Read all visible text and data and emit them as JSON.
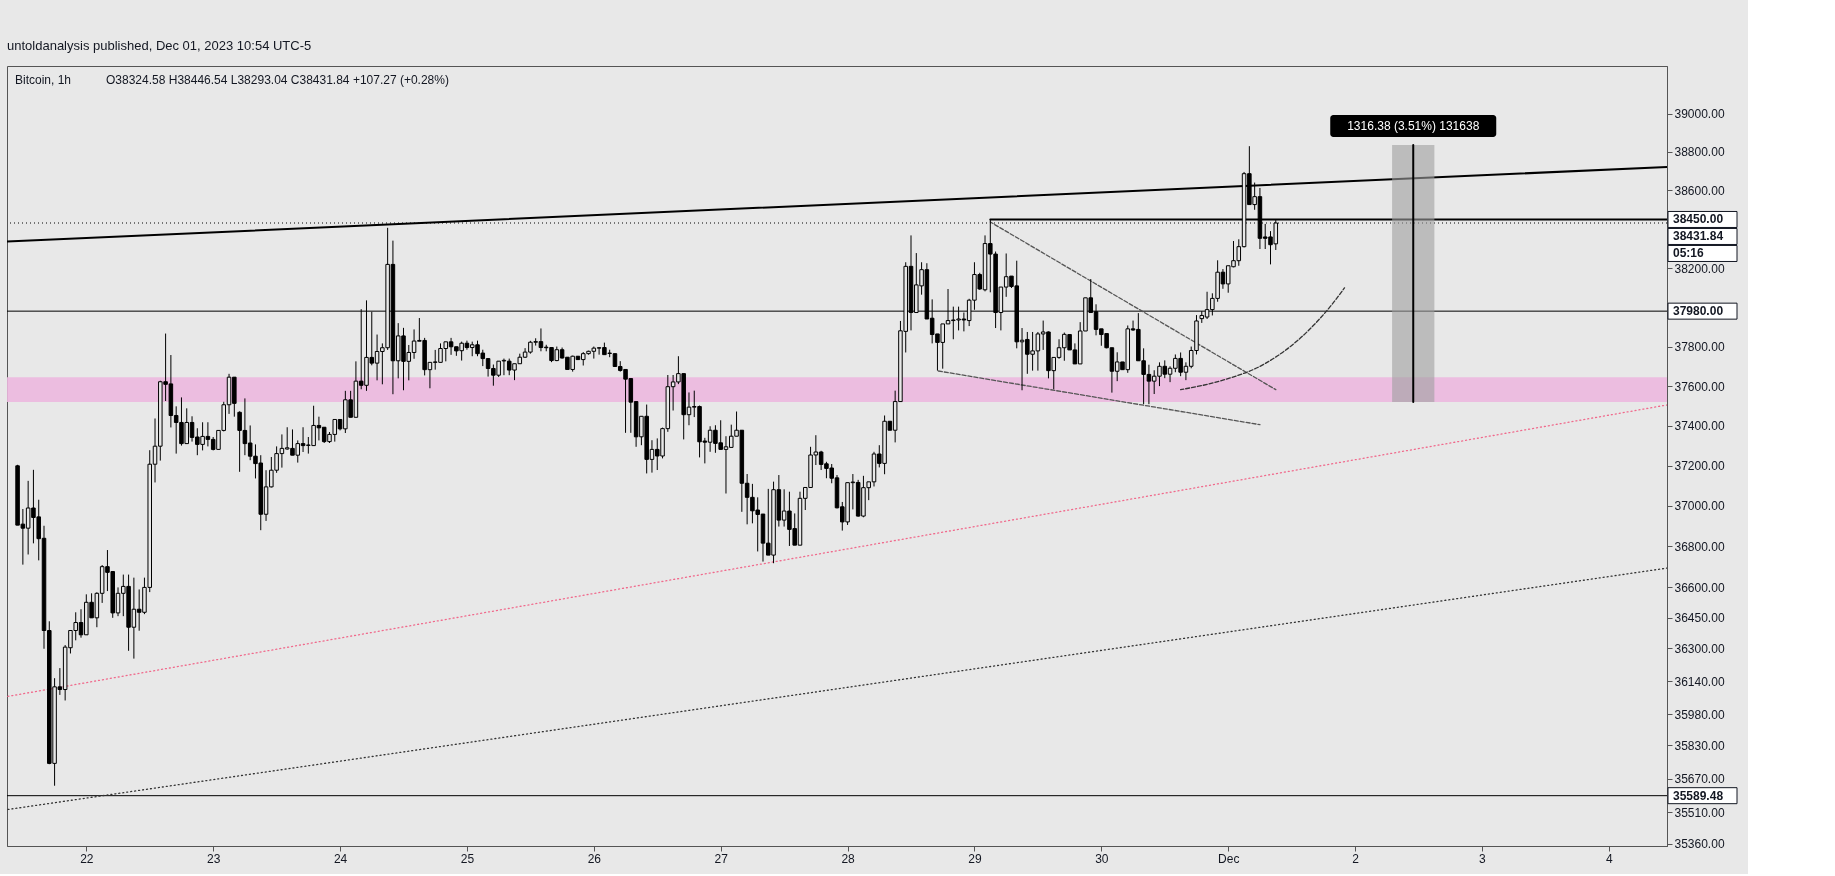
{
  "chart_data": {
    "type": "candlestick",
    "title": "Bitcoin, 1h",
    "subtitle": "O38324.58 H38446.54 L38293.04 C38431.84 +107.27 (+0.28%)",
    "color": "#000000",
    "log": true,
    "grid": false,
    "xlim": [
      "2023-11-21T09:00",
      "2023-12-04T11:00"
    ],
    "xticks": [
      {
        "value": "2023-11-22",
        "label": "22"
      },
      {
        "value": "2023-11-23",
        "label": "23"
      },
      {
        "value": "2023-11-24",
        "label": "24"
      },
      {
        "value": "2023-11-25",
        "label": "25"
      },
      {
        "value": "2023-11-26",
        "label": "26"
      },
      {
        "value": "2023-11-27",
        "label": "27"
      },
      {
        "value": "2023-11-28",
        "label": "28"
      },
      {
        "value": "2023-11-29",
        "label": "29"
      },
      {
        "value": "2023-11-30",
        "label": "30"
      },
      {
        "value": "2023-12-01",
        "label": "Dec"
      },
      {
        "value": "2023-12-02",
        "label": "2"
      },
      {
        "value": "2023-12-03",
        "label": "3"
      },
      {
        "value": "2023-12-04",
        "label": "4"
      }
    ],
    "ylim": [
      35350,
      39250
    ],
    "yticks": [
      {
        "value": 39000,
        "label": "39000.00"
      },
      {
        "value": 38800,
        "label": "38800.00"
      },
      {
        "value": 38600,
        "label": "38600.00"
      },
      {
        "value": 38200,
        "label": "38200.00"
      },
      {
        "value": 37800,
        "label": "37800.00"
      },
      {
        "value": 37600,
        "label": "37600.00"
      },
      {
        "value": 37400,
        "label": "37400.00"
      },
      {
        "value": 37200,
        "label": "37200.00"
      },
      {
        "value": 37000,
        "label": "37000.00"
      },
      {
        "value": 36800,
        "label": "36800.00"
      },
      {
        "value": 36600,
        "label": "36600.00"
      },
      {
        "value": 36450,
        "label": "36450.00"
      },
      {
        "value": 36300,
        "label": "36300.00"
      },
      {
        "value": 36140,
        "label": "36140.00"
      },
      {
        "value": 35980,
        "label": "35980.00"
      },
      {
        "value": 35830,
        "label": "35830.00"
      },
      {
        "value": 35670,
        "label": "35670.00"
      },
      {
        "value": 35510,
        "label": "35510.00"
      },
      {
        "value": 35360,
        "label": "35360.00"
      }
    ],
    "x": [
      "2023-11-21T11:00",
      "2023-11-21T12:00",
      "2023-11-21T13:00",
      "2023-11-21T14:00",
      "2023-11-21T15:00",
      "2023-11-21T16:00",
      "2023-11-21T17:00",
      "2023-11-21T18:00",
      "2023-11-21T19:00",
      "2023-11-21T20:00",
      "2023-11-21T21:00",
      "2023-11-21T22:00",
      "2023-11-21T23:00",
      "2023-11-22T00:00",
      "2023-11-22T01:00",
      "2023-11-22T02:00",
      "2023-11-22T03:00",
      "2023-11-22T04:00",
      "2023-11-22T05:00",
      "2023-11-22T06:00",
      "2023-11-22T07:00",
      "2023-11-22T08:00",
      "2023-11-22T09:00",
      "2023-11-22T10:00",
      "2023-11-22T11:00",
      "2023-11-22T12:00",
      "2023-11-22T13:00",
      "2023-11-22T14:00",
      "2023-11-22T15:00",
      "2023-11-22T16:00",
      "2023-11-22T17:00",
      "2023-11-22T18:00",
      "2023-11-22T19:00",
      "2023-11-22T20:00",
      "2023-11-22T21:00",
      "2023-11-22T22:00",
      "2023-11-22T23:00",
      "2023-11-23T00:00",
      "2023-11-23T01:00",
      "2023-11-23T02:00",
      "2023-11-23T03:00",
      "2023-11-23T04:00",
      "2023-11-23T05:00",
      "2023-11-23T06:00",
      "2023-11-23T07:00",
      "2023-11-23T08:00",
      "2023-11-23T09:00",
      "2023-11-23T10:00",
      "2023-11-23T11:00",
      "2023-11-23T12:00",
      "2023-11-23T13:00",
      "2023-11-23T14:00",
      "2023-11-23T15:00",
      "2023-11-23T16:00",
      "2023-11-23T17:00",
      "2023-11-23T18:00",
      "2023-11-23T19:00",
      "2023-11-23T20:00",
      "2023-11-23T21:00",
      "2023-11-23T22:00",
      "2023-11-23T23:00",
      "2023-11-24T00:00",
      "2023-11-24T01:00",
      "2023-11-24T02:00",
      "2023-11-24T03:00",
      "2023-11-24T04:00",
      "2023-11-24T05:00",
      "2023-11-24T06:00",
      "2023-11-24T07:00",
      "2023-11-24T08:00",
      "2023-11-24T09:00",
      "2023-11-24T10:00",
      "2023-11-24T11:00",
      "2023-11-24T12:00",
      "2023-11-24T13:00",
      "2023-11-24T14:00",
      "2023-11-24T15:00",
      "2023-11-24T16:00",
      "2023-11-24T17:00",
      "2023-11-24T18:00",
      "2023-11-24T19:00",
      "2023-11-24T20:00",
      "2023-11-24T21:00",
      "2023-11-24T22:00",
      "2023-11-24T23:00",
      "2023-11-25T00:00",
      "2023-11-25T01:00",
      "2023-11-25T02:00",
      "2023-11-25T03:00",
      "2023-11-25T04:00",
      "2023-11-25T05:00",
      "2023-11-25T06:00",
      "2023-11-25T07:00",
      "2023-11-25T08:00",
      "2023-11-25T09:00",
      "2023-11-25T10:00",
      "2023-11-25T11:00",
      "2023-11-25T12:00",
      "2023-11-25T13:00",
      "2023-11-25T14:00",
      "2023-11-25T15:00",
      "2023-11-25T16:00",
      "2023-11-25T17:00",
      "2023-11-25T18:00",
      "2023-11-25T19:00",
      "2023-11-25T20:00",
      "2023-11-25T21:00",
      "2023-11-25T22:00",
      "2023-11-25T23:00",
      "2023-11-26T00:00",
      "2023-11-26T01:00",
      "2023-11-26T02:00",
      "2023-11-26T03:00",
      "2023-11-26T04:00",
      "2023-11-26T05:00",
      "2023-11-26T06:00",
      "2023-11-26T07:00",
      "2023-11-26T08:00",
      "2023-11-26T09:00",
      "2023-11-26T10:00",
      "2023-11-26T11:00",
      "2023-11-26T12:00",
      "2023-11-26T13:00",
      "2023-11-26T14:00",
      "2023-11-26T15:00",
      "2023-11-26T16:00",
      "2023-11-26T17:00",
      "2023-11-26T18:00",
      "2023-11-26T19:00",
      "2023-11-26T20:00",
      "2023-11-26T21:00",
      "2023-11-26T22:00",
      "2023-11-26T23:00",
      "2023-11-27T00:00",
      "2023-11-27T01:00",
      "2023-11-27T02:00",
      "2023-11-27T03:00",
      "2023-11-27T04:00",
      "2023-11-27T05:00",
      "2023-11-27T06:00",
      "2023-11-27T07:00",
      "2023-11-27T08:00",
      "2023-11-27T09:00",
      "2023-11-27T10:00",
      "2023-11-27T11:00",
      "2023-11-27T12:00",
      "2023-11-27T13:00",
      "2023-11-27T14:00",
      "2023-11-27T15:00",
      "2023-11-27T16:00",
      "2023-11-27T17:00",
      "2023-11-27T18:00",
      "2023-11-27T19:00",
      "2023-11-27T20:00",
      "2023-11-27T21:00",
      "2023-11-27T22:00",
      "2023-11-27T23:00",
      "2023-11-28T00:00",
      "2023-11-28T01:00",
      "2023-11-28T02:00",
      "2023-11-28T03:00",
      "2023-11-28T04:00",
      "2023-11-28T05:00",
      "2023-11-28T06:00",
      "2023-11-28T07:00",
      "2023-11-28T08:00",
      "2023-11-28T09:00",
      "2023-11-28T10:00",
      "2023-11-28T11:00",
      "2023-11-28T12:00",
      "2023-11-28T13:00",
      "2023-11-28T14:00",
      "2023-11-28T15:00",
      "2023-11-28T16:00",
      "2023-11-28T17:00",
      "2023-11-28T18:00",
      "2023-11-28T19:00",
      "2023-11-28T20:00",
      "2023-11-28T21:00",
      "2023-11-28T22:00",
      "2023-11-28T23:00",
      "2023-11-29T00:00",
      "2023-11-29T01:00",
      "2023-11-29T02:00",
      "2023-11-29T03:00",
      "2023-11-29T04:00",
      "2023-11-29T05:00",
      "2023-11-29T06:00",
      "2023-11-29T07:00",
      "2023-11-29T08:00",
      "2023-11-29T09:00",
      "2023-11-29T10:00",
      "2023-11-29T11:00",
      "2023-11-29T12:00",
      "2023-11-29T13:00",
      "2023-11-29T14:00",
      "2023-11-29T15:00",
      "2023-11-29T16:00",
      "2023-11-29T17:00",
      "2023-11-29T18:00",
      "2023-11-29T19:00",
      "2023-11-29T20:00",
      "2023-11-29T21:00",
      "2023-11-29T22:00",
      "2023-11-29T23:00",
      "2023-11-30T00:00",
      "2023-11-30T01:00",
      "2023-11-30T02:00",
      "2023-11-30T03:00",
      "2023-11-30T04:00",
      "2023-11-30T05:00",
      "2023-11-30T06:00",
      "2023-11-30T07:00",
      "2023-11-30T08:00",
      "2023-11-30T09:00",
      "2023-11-30T10:00",
      "2023-11-30T11:00",
      "2023-11-30T12:00",
      "2023-11-30T13:00",
      "2023-11-30T14:00",
      "2023-11-30T15:00",
      "2023-11-30T16:00",
      "2023-11-30T17:00",
      "2023-11-30T18:00",
      "2023-11-30T19:00",
      "2023-11-30T20:00",
      "2023-11-30T21:00",
      "2023-11-30T22:00",
      "2023-11-30T23:00",
      "2023-12-01T00:00",
      "2023-12-01T01:00",
      "2023-12-01T02:00",
      "2023-12-01T03:00",
      "2023-12-01T04:00",
      "2023-12-01T05:00",
      "2023-12-01T06:00",
      "2023-12-01T07:00",
      "2023-12-01T08:00",
      "2023-12-01T09:00"
    ],
    "ohlc": [
      [
        37200,
        37205,
        36905,
        36905
      ],
      [
        36910,
        36985,
        36710,
        36890
      ],
      [
        36890,
        37125,
        36760,
        36990
      ],
      [
        36990,
        37180,
        36815,
        36943
      ],
      [
        36946,
        37031,
        36731,
        36838
      ],
      [
        36840,
        36902,
        36298,
        36387
      ],
      [
        36387,
        36432,
        35740,
        35744
      ],
      [
        35744,
        36155,
        35637,
        36113
      ],
      [
        36113,
        36204,
        36074,
        36100
      ],
      [
        36100,
        36316,
        36047,
        36306
      ],
      [
        36303,
        36387,
        36275,
        36387
      ],
      [
        36387,
        36476,
        36339,
        36426
      ],
      [
        36426,
        36491,
        36352,
        36366
      ],
      [
        36366,
        36564,
        36366,
        36525
      ],
      [
        36525,
        36569,
        36449,
        36449
      ],
      [
        36449,
        36574,
        36403,
        36569
      ],
      [
        36569,
        36708,
        36522,
        36700
      ],
      [
        36700,
        36782,
        36580,
        36672
      ],
      [
        36676,
        36676,
        36449,
        36473
      ],
      [
        36473,
        36598,
        36457,
        36569
      ],
      [
        36569,
        36661,
        36457,
        36603
      ],
      [
        36603,
        36661,
        36288,
        36403
      ],
      [
        36403,
        36646,
        36250,
        36491
      ],
      [
        36491,
        36588,
        36386,
        36476
      ],
      [
        36476,
        36646,
        36467,
        36598
      ],
      [
        36598,
        37278,
        36575,
        37208
      ],
      [
        37208,
        37437,
        37117,
        37298
      ],
      [
        37298,
        37627,
        37226,
        37622
      ],
      [
        37622,
        37866,
        37525,
        37609
      ],
      [
        37611,
        37757,
        37392,
        37452
      ],
      [
        37452,
        37498,
        37261,
        37417
      ],
      [
        37417,
        37543,
        37301,
        37311
      ],
      [
        37311,
        37488,
        37311,
        37417
      ],
      [
        37417,
        37448,
        37321,
        37342
      ],
      [
        37344,
        37388,
        37253,
        37307
      ],
      [
        37307,
        37418,
        37277,
        37347
      ],
      [
        37347,
        37418,
        37297,
        37332
      ],
      [
        37332,
        37344,
        37277,
        37282
      ],
      [
        37282,
        37377,
        37282,
        37377
      ],
      [
        37377,
        37521,
        37372,
        37506
      ],
      [
        37506,
        37662,
        37460,
        37645
      ],
      [
        37645,
        37645,
        37446,
        37513
      ],
      [
        37468,
        37473,
        37170,
        37377
      ],
      [
        37377,
        37538,
        37253,
        37311
      ],
      [
        37314,
        37402,
        37228,
        37248
      ],
      [
        37248,
        37307,
        37137,
        37211
      ],
      [
        37214,
        37253,
        36880,
        36959
      ],
      [
        36959,
        37178,
        36926,
        37095
      ],
      [
        37095,
        37244,
        37092,
        37178
      ],
      [
        37178,
        37297,
        37165,
        37261
      ],
      [
        37261,
        37357,
        37191,
        37287
      ],
      [
        37284,
        37393,
        37281,
        37290
      ],
      [
        37287,
        37382,
        37253,
        37253
      ],
      [
        37253,
        37327,
        37216,
        37311
      ],
      [
        37311,
        37393,
        37269,
        37301
      ],
      [
        37302,
        37344,
        37261,
        37304
      ],
      [
        37301,
        37501,
        37301,
        37402
      ],
      [
        37402,
        37446,
        37327,
        37390
      ],
      [
        37393,
        37393,
        37314,
        37321
      ],
      [
        37321,
        37369,
        37314,
        37357
      ],
      [
        37357,
        37432,
        37321,
        37432
      ],
      [
        37432,
        37432,
        37377,
        37385
      ],
      [
        37385,
        37576,
        37364,
        37531
      ],
      [
        37531,
        37576,
        37443,
        37443
      ],
      [
        37443,
        37725,
        37443,
        37625
      ],
      [
        37625,
        37990,
        37584,
        37604
      ],
      [
        37604,
        38035,
        37576,
        37745
      ],
      [
        37745,
        37977,
        37705,
        37716
      ],
      [
        37716,
        37861,
        37629,
        37775
      ],
      [
        37775,
        37816,
        37609,
        37794
      ],
      [
        37794,
        38407,
        37783,
        38219
      ],
      [
        38219,
        38341,
        37559,
        37728
      ],
      [
        37728,
        37919,
        37639,
        37854
      ],
      [
        37854,
        37895,
        37579,
        37725
      ],
      [
        37725,
        37808,
        37629,
        37770
      ],
      [
        37770,
        37887,
        37738,
        37828
      ],
      [
        37827,
        37945,
        37827,
        37831
      ],
      [
        37831,
        37844,
        37654,
        37683
      ],
      [
        37683,
        37720,
        37589,
        37720
      ],
      [
        37720,
        37783,
        37683,
        37722
      ],
      [
        37720,
        37816,
        37720,
        37790
      ],
      [
        37790,
        37824,
        37725,
        37824
      ],
      [
        37824,
        37844,
        37758,
        37799
      ],
      [
        37799,
        37799,
        37753,
        37778
      ],
      [
        37779,
        37825,
        37729,
        37817
      ],
      [
        37817,
        37830,
        37784,
        37795
      ],
      [
        37795,
        37825,
        37751,
        37809
      ],
      [
        37809,
        37830,
        37751,
        37764
      ],
      [
        37767,
        37784,
        37701,
        37739
      ],
      [
        37739,
        37742,
        37648,
        37689
      ],
      [
        37689,
        37709,
        37602,
        37655
      ],
      [
        37655,
        37726,
        37646,
        37726
      ],
      [
        37727,
        37739,
        37655,
        37730
      ],
      [
        37726,
        37739,
        37655,
        37681
      ],
      [
        37681,
        37713,
        37630,
        37713
      ],
      [
        37713,
        37764,
        37713,
        37746
      ],
      [
        37746,
        37792,
        37742,
        37772
      ],
      [
        37772,
        37829,
        37764,
        37822
      ],
      [
        37822,
        37842,
        37805,
        37825
      ],
      [
        37825,
        37892,
        37776,
        37795
      ],
      [
        37797,
        37809,
        37776,
        37794
      ],
      [
        37795,
        37795,
        37721,
        37729
      ],
      [
        37729,
        37800,
        37726,
        37784
      ],
      [
        37784,
        37795,
        37739,
        37742
      ],
      [
        37746,
        37746,
        37684,
        37684
      ],
      [
        37684,
        37754,
        37673,
        37751
      ],
      [
        37751,
        37751,
        37734,
        37734
      ],
      [
        37734,
        37772,
        37704,
        37764
      ],
      [
        37764,
        37779,
        37759,
        37776
      ],
      [
        37776,
        37800,
        37739,
        37792
      ],
      [
        37792,
        37797,
        37759,
        37794
      ],
      [
        37795,
        37820,
        37759,
        37759
      ],
      [
        37767,
        37784,
        37746,
        37765
      ],
      [
        37764,
        37764,
        37699,
        37699
      ],
      [
        37699,
        37726,
        37673,
        37679
      ],
      [
        37684,
        37684,
        37365,
        37635
      ],
      [
        37638,
        37638,
        37365,
        37519
      ],
      [
        37522,
        37522,
        37295,
        37345
      ],
      [
        37345,
        37448,
        37303,
        37448
      ],
      [
        37448,
        37507,
        37162,
        37232
      ],
      [
        37232,
        37328,
        37166,
        37282
      ],
      [
        37282,
        37337,
        37179,
        37249
      ],
      [
        37249,
        37391,
        37237,
        37386
      ],
      [
        37386,
        37656,
        37370,
        37597
      ],
      [
        37597,
        37656,
        37477,
        37621
      ],
      [
        37621,
        37751,
        37610,
        37663
      ],
      [
        37663,
        37663,
        37332,
        37456
      ],
      [
        37456,
        37568,
        37403,
        37494
      ],
      [
        37494,
        37577,
        37444,
        37497
      ],
      [
        37497,
        37502,
        37242,
        37320
      ],
      [
        37324,
        37340,
        37212,
        37318
      ],
      [
        37318,
        37398,
        37270,
        37378
      ],
      [
        37378,
        37403,
        37265,
        37312
      ],
      [
        37315,
        37428,
        37282,
        37282
      ],
      [
        37282,
        37348,
        37062,
        37295
      ],
      [
        37292,
        37406,
        37292,
        37348
      ],
      [
        37348,
        37472,
        37348,
        37378
      ],
      [
        37378,
        37378,
        36971,
        37113
      ],
      [
        37113,
        37159,
        36909,
        37043
      ],
      [
        37043,
        37110,
        36914,
        36976
      ],
      [
        36980,
        37043,
        36775,
        36958
      ],
      [
        36960,
        36960,
        36725,
        36816
      ],
      [
        36816,
        37085,
        36757,
        36757
      ],
      [
        36757,
        37121,
        36717,
        37081
      ],
      [
        37081,
        37154,
        36898,
        36930
      ],
      [
        36930,
        37083,
        36898,
        36975
      ],
      [
        36975,
        37071,
        36802,
        36884
      ],
      [
        36888,
        36963,
        36806,
        36806
      ],
      [
        36806,
        37071,
        36806,
        37038
      ],
      [
        37038,
        37092,
        36980,
        37092
      ],
      [
        37092,
        37295,
        37092,
        37254
      ],
      [
        37254,
        37353,
        37204,
        37269
      ],
      [
        37269,
        37275,
        37179,
        37207
      ],
      [
        37210,
        37220,
        37138,
        37187
      ],
      [
        37189,
        37209,
        37113,
        37138
      ],
      [
        37140,
        37154,
        36988,
        36991
      ],
      [
        36996,
        37020,
        36878,
        36921
      ],
      [
        36921,
        37116,
        36906,
        37116
      ],
      [
        37116,
        37159,
        36983,
        37119
      ],
      [
        37117,
        37130,
        36947,
        36950
      ],
      [
        36950,
        37150,
        36944,
        37091
      ],
      [
        37091,
        37120,
        37029,
        37120
      ],
      [
        37120,
        37270,
        37097,
        37259
      ],
      [
        37259,
        37303,
        37192,
        37212
      ],
      [
        37212,
        37452,
        37158,
        37423
      ],
      [
        37423,
        37423,
        37378,
        37378
      ],
      [
        37378,
        37577,
        37317,
        37522
      ],
      [
        37522,
        37930,
        37522,
        37880
      ],
      [
        37877,
        38230,
        37770,
        38209
      ],
      [
        38209,
        38368,
        37882,
        37973
      ],
      [
        37973,
        38277,
        37973,
        38114
      ],
      [
        38109,
        38230,
        38064,
        38192
      ],
      [
        38192,
        38225,
        37940,
        37940
      ],
      [
        37944,
        38040,
        37816,
        37861
      ],
      [
        37864,
        37864,
        37678,
        37821
      ],
      [
        37821,
        37915,
        37688,
        37915
      ],
      [
        37915,
        38093,
        37915,
        37932
      ],
      [
        37932,
        38003,
        37837,
        37935
      ],
      [
        37935,
        38003,
        37882,
        37940
      ],
      [
        37940,
        37973,
        37877,
        37935
      ],
      [
        37932,
        38043,
        37904,
        38036
      ],
      [
        38036,
        38230,
        37987,
        38167
      ],
      [
        38167,
        38176,
        38089,
        38093
      ],
      [
        38089,
        38368,
        38081,
        38326
      ],
      [
        38326,
        38450,
        38076,
        38272
      ],
      [
        38272,
        38285,
        37894,
        37973
      ],
      [
        37973,
        38103,
        37882,
        38103
      ],
      [
        38103,
        38275,
        38053,
        38156
      ],
      [
        38159,
        38159,
        38098,
        38106
      ],
      [
        38109,
        38238,
        37791,
        37824
      ],
      [
        37824,
        37894,
        37579,
        37832
      ],
      [
        37836,
        37874,
        37662,
        37761
      ],
      [
        37761,
        37874,
        37678,
        37778
      ],
      [
        37778,
        37874,
        37678,
        37864
      ],
      [
        37864,
        37932,
        37783,
        37874
      ],
      [
        37874,
        37877,
        37639,
        37678
      ],
      [
        37678,
        37745,
        37584,
        37745
      ],
      [
        37745,
        37837,
        37738,
        37794
      ],
      [
        37794,
        37871,
        37728,
        37862
      ],
      [
        37861,
        37861,
        37783,
        37783
      ],
      [
        37783,
        37816,
        37712,
        37712
      ],
      [
        37712,
        37924,
        37712,
        37879
      ],
      [
        37879,
        38048,
        37879,
        38048
      ],
      [
        38048,
        38144,
        37973,
        37973
      ],
      [
        37977,
        38015,
        37857,
        37887
      ],
      [
        37890,
        37890,
        37804,
        37861
      ],
      [
        37866,
        37866,
        37791,
        37794
      ],
      [
        37794,
        37794,
        37567,
        37675
      ],
      [
        37675,
        37771,
        37625,
        37722
      ],
      [
        37722,
        37722,
        37683,
        37683
      ],
      [
        37683,
        37907,
        37667,
        37890
      ],
      [
        37890,
        37932,
        37880,
        37884
      ],
      [
        37887,
        37970,
        37728,
        37728
      ],
      [
        37728,
        37791,
        37509,
        37659
      ],
      [
        37659,
        37708,
        37509,
        37625
      ],
      [
        37625,
        37680,
        37560,
        37650
      ],
      [
        37650,
        37720,
        37600,
        37700
      ],
      [
        37700,
        37730,
        37640,
        37660
      ],
      [
        37660,
        37700,
        37620,
        37690
      ],
      [
        37690,
        37760,
        37670,
        37740
      ],
      [
        37740,
        37770,
        37650,
        37670
      ],
      [
        37670,
        37720,
        37630,
        37700
      ],
      [
        37700,
        37800,
        37690,
        37780
      ],
      [
        37780,
        37960,
        37760,
        37930
      ],
      [
        37942,
        37980,
        37920,
        37958
      ],
      [
        37950,
        38079,
        37940,
        37988
      ],
      [
        37988,
        38071,
        37958,
        38045
      ],
      [
        38045,
        38240,
        38028,
        38179
      ],
      [
        38179,
        38195,
        38094,
        38119
      ],
      [
        38119,
        38212,
        38074,
        38212
      ],
      [
        38207,
        38339,
        38204,
        38238
      ],
      [
        38238,
        38348,
        38212,
        38310
      ],
      [
        38310,
        38696,
        38306,
        38687
      ],
      [
        38687,
        38830,
        38527,
        38527
      ],
      [
        38527,
        38641,
        38500,
        38568
      ],
      [
        38568,
        38613,
        38298,
        38353
      ],
      [
        38360,
        38427,
        38298,
        38353
      ],
      [
        38360,
        38390,
        38219,
        38320
      ],
      [
        38324.58,
        38446.54,
        38293.04,
        38431.84
      ]
    ],
    "series": [
      {
        "type": "line",
        "color": "#000000",
        "line_style": "solid",
        "x": [
          "2023-11-21T09:00",
          "2023-12-04T11:00"
        ],
        "values": [
          38336,
          38722
        ]
      },
      {
        "type": "line",
        "color": "#f06a8c",
        "line_style": "dotted",
        "x": [
          "2023-11-21T09:00",
          "2023-12-04T11:00"
        ],
        "values": [
          36066,
          37505
        ]
      },
      {
        "type": "line",
        "color": "#333333",
        "line_style": "dotted",
        "x": [
          "2023-11-21T09:00",
          "2023-12-04T11:00"
        ],
        "values": [
          35523,
          36693
        ]
      },
      {
        "type": "line",
        "color": "#000000",
        "line_style": "solid",
        "x": [
          "2023-11-29T03:00",
          "2023-12-04T11:00"
        ],
        "values": [
          38450,
          38450
        ]
      },
      {
        "type": "line",
        "color": "#555555",
        "line_style": "dashed",
        "x": [
          "2023-11-29T03:00",
          "2023-12-01T09:00"
        ],
        "values": [
          38437,
          37582
        ]
      },
      {
        "type": "line",
        "color": "#555555",
        "line_style": "dashed",
        "x": [
          "2023-11-28T17:00",
          "2023-12-01T06:00"
        ],
        "values": [
          37677,
          37406
        ]
      },
      {
        "type": "line",
        "color": "#333333",
        "line_style": "dashed",
        "x": [
          "2023-11-30T15:00",
          "2023-11-30T23:00",
          "2023-12-01T07:00",
          "2023-12-01T15:00",
          "2023-12-01T20:00",
          "2023-12-01T22:00"
        ],
        "values": [
          37582,
          37630,
          37714,
          37877,
          38027,
          38099
        ]
      },
      {
        "type": "bar",
        "color": "#9e9e9e",
        "x": [
          "2023-12-02T11:00"
        ],
        "base": [
          37520
        ],
        "values": [
          1316.38
        ]
      },
      {
        "type": "line",
        "color": "#000000",
        "line_style": "solid",
        "x": [
          "2023-12-02T11:00",
          "2023-12-02T11:00"
        ],
        "values": [
          37520,
          38836
        ]
      }
    ],
    "bands": [
      {
        "axis": "y",
        "from": 37520,
        "to": 37645,
        "color": "#ecb8df"
      }
    ],
    "ref_lines": [
      {
        "axis": "y",
        "value": 37980,
        "label": "37980.00",
        "color": "#000000",
        "line_style": "solid"
      },
      {
        "axis": "y",
        "value": 35589.48,
        "label": "35589.48",
        "color": "#000000",
        "line_style": "solid"
      },
      {
        "axis": "y",
        "value": 38431.84,
        "label": "38431.84",
        "color": "#000000",
        "line_style": "dotted"
      }
    ],
    "annotations": [
      "untoldanalysis published, Dec 01, 2023 10:54 UTC-5",
      {
        "text": "1316.38 (3.51%) 131638",
        "x": "2023-12-02T11:00",
        "y": 38836
      },
      {
        "text": "38450.00",
        "x": "2023-12-04T11:00",
        "y": 38450
      },
      "05:16"
    ]
  }
}
